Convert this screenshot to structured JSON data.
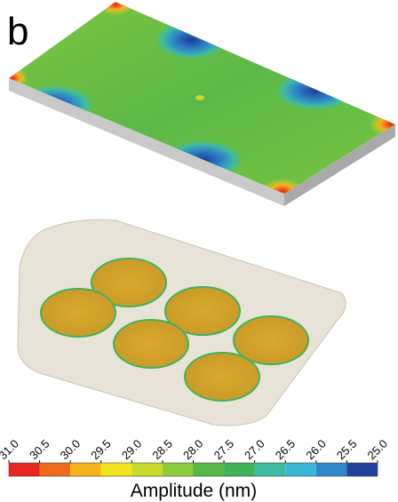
{
  "panel_label": "b",
  "colorbar": {
    "label": "Amplitude (nm)",
    "ticks": [
      {
        "value": 31,
        "label": "31.0"
      },
      {
        "value": 30.5,
        "label": "30.5"
      },
      {
        "value": 30,
        "label": "30.0"
      },
      {
        "value": 29.5,
        "label": "29.5"
      },
      {
        "value": 29,
        "label": "29.0"
      },
      {
        "value": 28.5,
        "label": "28.5"
      },
      {
        "value": 28,
        "label": "28.0"
      },
      {
        "value": 27.5,
        "label": "27.5"
      },
      {
        "value": 27,
        "label": "27.0"
      },
      {
        "value": 26.5,
        "label": "26.5"
      },
      {
        "value": 26,
        "label": "26.0"
      },
      {
        "value": 25.5,
        "label": "25.5"
      },
      {
        "value": 25,
        "label": "25.0"
      }
    ],
    "colors": [
      "#e8251f",
      "#f06a1c",
      "#f6b21a",
      "#f2e41c",
      "#c7dc2a",
      "#8ccb3c",
      "#55b947",
      "#3fb25a",
      "#3fbba0",
      "#3bb7d6",
      "#2f86c8",
      "#23409a"
    ]
  }
}
